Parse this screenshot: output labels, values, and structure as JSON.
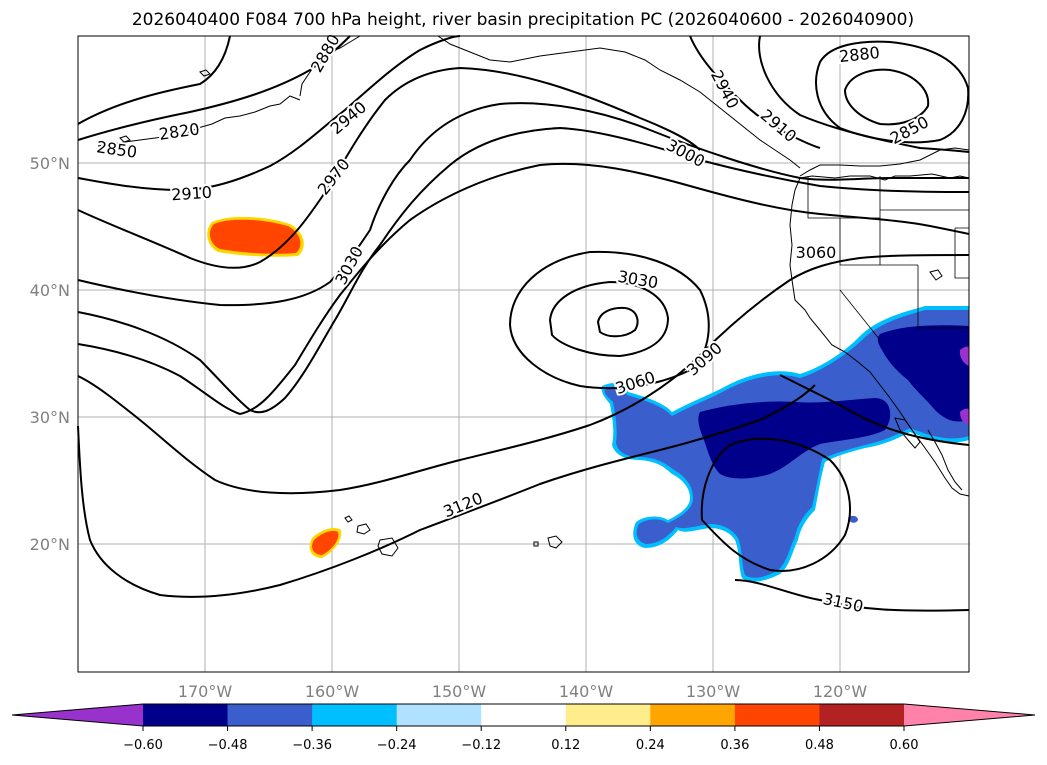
{
  "title": "2026040400 F084 700 hPa height, river basin precipitation PC (2026040600 - 2026040900)",
  "map": {
    "lon_labels": [
      "170°W",
      "160°W",
      "150°W",
      "140°W",
      "130°W",
      "120°W"
    ],
    "lat_labels": [
      "50°N",
      "40°N",
      "30°N",
      "20°N"
    ],
    "contour_labels": [
      "2850",
      "2820",
      "2910",
      "2970",
      "2940",
      "2880",
      "3030",
      "3030",
      "3060",
      "3060",
      "3090",
      "3000",
      "2940",
      "2910",
      "2850",
      "2880",
      "3120",
      "3150"
    ]
  },
  "colorbar": {
    "ticks": [
      "−0.60",
      "−0.48",
      "−0.36",
      "−0.24",
      "−0.12",
      "0.12",
      "0.24",
      "0.36",
      "0.48",
      "0.60"
    ],
    "colors": [
      "#9932cc",
      "#00008b",
      "#3a5fcd",
      "#00bfff",
      "#b0e2ff",
      "#ffffff",
      "#ffec8b",
      "#ffa500",
      "#ff4500",
      "#b22222",
      "#ff82ab"
    ]
  },
  "colors": {
    "warm_anomaly": "#ff4500",
    "cool_anomaly": "#3a5fcd",
    "strong_cool": "#00008b"
  }
}
